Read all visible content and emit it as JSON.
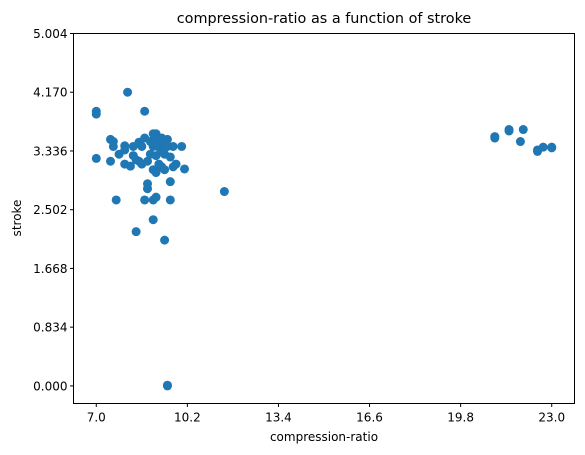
{
  "chart_data": {
    "type": "scatter",
    "title": "compression-ratio as a function of stroke",
    "xlabel": "compression-ratio",
    "ylabel": "stroke",
    "xlim": [
      6.2,
      23.8
    ],
    "ylim": [
      -0.25,
      5.004
    ],
    "xticks": [
      "7.0",
      "10.2",
      "13.4",
      "16.6",
      "19.8",
      "23.0"
    ],
    "yticks": [
      "0.000",
      "0.834",
      "1.668",
      "2.502",
      "3.336",
      "4.170",
      "5.004"
    ],
    "grid": false,
    "marker_color": "#1f77b4",
    "points": [
      {
        "x": 7.0,
        "y": 3.9
      },
      {
        "x": 7.0,
        "y": 3.86
      },
      {
        "x": 7.0,
        "y": 3.23
      },
      {
        "x": 7.5,
        "y": 3.5
      },
      {
        "x": 7.5,
        "y": 3.19
      },
      {
        "x": 7.6,
        "y": 3.47
      },
      {
        "x": 7.6,
        "y": 3.4
      },
      {
        "x": 7.7,
        "y": 2.64
      },
      {
        "x": 7.8,
        "y": 3.29
      },
      {
        "x": 8.0,
        "y": 3.41
      },
      {
        "x": 8.0,
        "y": 3.35
      },
      {
        "x": 8.0,
        "y": 3.15
      },
      {
        "x": 8.1,
        "y": 4.17
      },
      {
        "x": 8.2,
        "y": 3.12
      },
      {
        "x": 8.3,
        "y": 3.4
      },
      {
        "x": 8.3,
        "y": 3.27
      },
      {
        "x": 8.4,
        "y": 2.19
      },
      {
        "x": 8.4,
        "y": 3.21
      },
      {
        "x": 8.5,
        "y": 3.46
      },
      {
        "x": 8.5,
        "y": 3.19
      },
      {
        "x": 8.6,
        "y": 3.4
      },
      {
        "x": 8.6,
        "y": 3.15
      },
      {
        "x": 8.7,
        "y": 3.9
      },
      {
        "x": 8.7,
        "y": 3.52
      },
      {
        "x": 8.7,
        "y": 2.64
      },
      {
        "x": 8.8,
        "y": 3.19
      },
      {
        "x": 8.8,
        "y": 2.8
      },
      {
        "x": 8.8,
        "y": 2.87
      },
      {
        "x": 8.9,
        "y": 3.47
      },
      {
        "x": 8.9,
        "y": 3.29
      },
      {
        "x": 9.0,
        "y": 3.58
      },
      {
        "x": 9.0,
        "y": 3.4
      },
      {
        "x": 9.0,
        "y": 3.07
      },
      {
        "x": 9.0,
        "y": 2.64
      },
      {
        "x": 9.0,
        "y": 2.36
      },
      {
        "x": 9.1,
        "y": 3.58
      },
      {
        "x": 9.1,
        "y": 3.5
      },
      {
        "x": 9.1,
        "y": 3.27
      },
      {
        "x": 9.1,
        "y": 3.03
      },
      {
        "x": 9.1,
        "y": 2.68
      },
      {
        "x": 9.2,
        "y": 3.46
      },
      {
        "x": 9.2,
        "y": 3.39
      },
      {
        "x": 9.2,
        "y": 3.15
      },
      {
        "x": 9.3,
        "y": 3.52
      },
      {
        "x": 9.3,
        "y": 3.35
      },
      {
        "x": 9.3,
        "y": 3.11
      },
      {
        "x": 9.4,
        "y": 3.47
      },
      {
        "x": 9.4,
        "y": 3.29
      },
      {
        "x": 9.4,
        "y": 3.07
      },
      {
        "x": 9.4,
        "y": 2.07
      },
      {
        "x": 9.5,
        "y": 3.5
      },
      {
        "x": 9.5,
        "y": 3.4
      },
      {
        "x": 9.5,
        "y": 0.0
      },
      {
        "x": 9.5,
        "y": 0.01
      },
      {
        "x": 9.6,
        "y": 3.25
      },
      {
        "x": 9.6,
        "y": 2.9
      },
      {
        "x": 9.6,
        "y": 2.64
      },
      {
        "x": 9.7,
        "y": 3.4
      },
      {
        "x": 9.7,
        "y": 3.11
      },
      {
        "x": 9.8,
        "y": 3.15
      },
      {
        "x": 10.0,
        "y": 3.4
      },
      {
        "x": 10.1,
        "y": 3.08
      },
      {
        "x": 11.5,
        "y": 2.76
      },
      {
        "x": 21.0,
        "y": 3.54
      },
      {
        "x": 21.0,
        "y": 3.52
      },
      {
        "x": 21.5,
        "y": 3.64
      },
      {
        "x": 21.5,
        "y": 3.62
      },
      {
        "x": 21.9,
        "y": 3.47
      },
      {
        "x": 22.0,
        "y": 3.64
      },
      {
        "x": 22.5,
        "y": 3.35
      },
      {
        "x": 22.5,
        "y": 3.33
      },
      {
        "x": 22.7,
        "y": 3.39
      },
      {
        "x": 23.0,
        "y": 3.39
      },
      {
        "x": 23.0,
        "y": 3.38
      }
    ]
  }
}
